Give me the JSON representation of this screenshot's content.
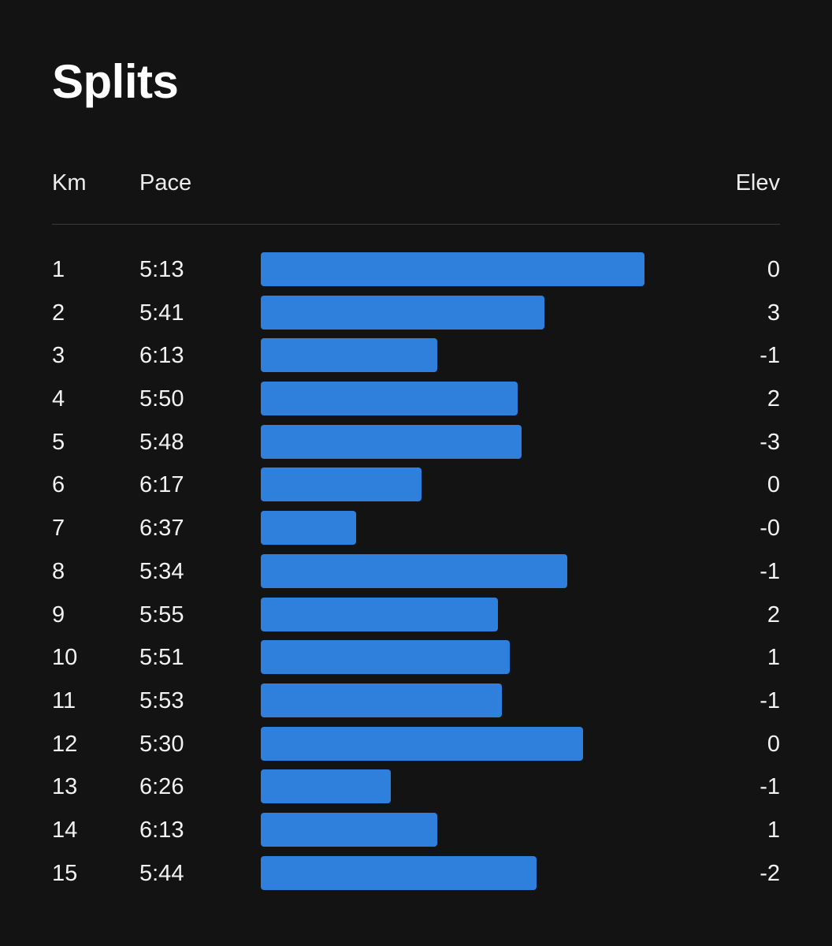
{
  "title": "Splits",
  "columns": {
    "km": "Km",
    "pace": "Pace",
    "elev": "Elev"
  },
  "colors": {
    "background": "#131313",
    "bar": "#2f7fdc",
    "divider": "#3a3a3a"
  },
  "chart_data": {
    "type": "bar",
    "orientation": "horizontal",
    "categories": [
      "1",
      "2",
      "3",
      "4",
      "5",
      "6",
      "7",
      "8",
      "9",
      "10",
      "11",
      "12",
      "13",
      "14",
      "15"
    ],
    "pace_labels": [
      "5:13",
      "5:41",
      "6:13",
      "5:50",
      "5:48",
      "6:17",
      "6:37",
      "5:34",
      "5:55",
      "5:51",
      "5:53",
      "5:30",
      "6:26",
      "6:13",
      "5:44"
    ],
    "pace_seconds": [
      313,
      341,
      373,
      350,
      348,
      377,
      397,
      334,
      355,
      351,
      353,
      330,
      386,
      373,
      344
    ],
    "bar_fraction": [
      0.984,
      0.727,
      0.452,
      0.658,
      0.668,
      0.412,
      0.244,
      0.786,
      0.608,
      0.638,
      0.618,
      0.826,
      0.333,
      0.452,
      0.707
    ],
    "elevation": [
      "0",
      "3",
      "-1",
      "2",
      "-3",
      "0",
      "-0",
      "-1",
      "2",
      "1",
      "-1",
      "0",
      "-1",
      "1",
      "-2"
    ]
  }
}
